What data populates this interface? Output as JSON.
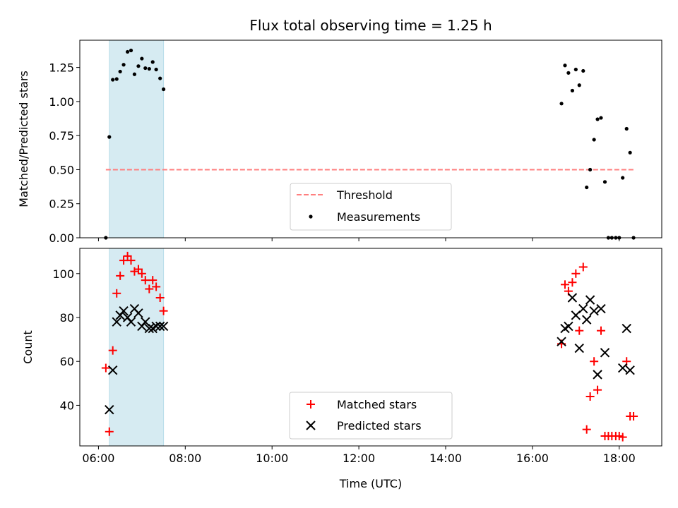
{
  "chart_data": [
    {
      "type": "scatter",
      "title": "Flux total observing time = 1.25 h",
      "xlabel": "",
      "ylabel": "Matched/Predicted stars",
      "xlim": [
        5.57,
        18.98
      ],
      "ylim": [
        0.0,
        1.45
      ],
      "yticks": [
        0.0,
        0.25,
        0.5,
        0.75,
        1.0,
        1.25
      ],
      "ytick_labels": [
        "0.00",
        "0.25",
        "0.50",
        "0.75",
        "1.00",
        "1.25"
      ],
      "highlight_span": [
        6.25,
        7.5
      ],
      "highlight_color": "#add8e6",
      "threshold": {
        "name": "Threshold",
        "y": 0.5,
        "x_range": [
          6.17,
          18.35
        ],
        "color": "#ff7f7f"
      },
      "series": [
        {
          "name": "Measurements",
          "color": "#000000",
          "marker": "dot",
          "points": [
            [
              6.17,
              0.0
            ],
            [
              6.25,
              0.74
            ],
            [
              6.33,
              1.16
            ],
            [
              6.42,
              1.165
            ],
            [
              6.5,
              1.22
            ],
            [
              6.58,
              1.27
            ],
            [
              6.67,
              1.365
            ],
            [
              6.75,
              1.375
            ],
            [
              6.83,
              1.2
            ],
            [
              6.92,
              1.26
            ],
            [
              7.0,
              1.315
            ],
            [
              7.08,
              1.245
            ],
            [
              7.17,
              1.24
            ],
            [
              7.25,
              1.29
            ],
            [
              7.33,
              1.235
            ],
            [
              7.42,
              1.17
            ],
            [
              7.5,
              1.09
            ],
            [
              16.67,
              0.985
            ],
            [
              16.75,
              1.265
            ],
            [
              16.83,
              1.21
            ],
            [
              16.92,
              1.08
            ],
            [
              17.0,
              1.235
            ],
            [
              17.08,
              1.12
            ],
            [
              17.17,
              1.225
            ],
            [
              17.25,
              0.37
            ],
            [
              17.33,
              0.5
            ],
            [
              17.42,
              0.72
            ],
            [
              17.5,
              0.87
            ],
            [
              17.58,
              0.88
            ],
            [
              17.67,
              0.41
            ],
            [
              17.75,
              0.0
            ],
            [
              17.83,
              0.0
            ],
            [
              17.92,
              0.0
            ],
            [
              18.0,
              0.0
            ],
            [
              18.08,
              0.44
            ],
            [
              18.17,
              0.8
            ],
            [
              18.25,
              0.625
            ],
            [
              18.33,
              0.0
            ]
          ]
        }
      ],
      "legend": {
        "placement": "lower-center",
        "entries": [
          "Threshold",
          "Measurements"
        ]
      }
    },
    {
      "type": "scatter",
      "title": "",
      "xlabel": "Time (UTC)",
      "ylabel": "Count",
      "xlim": [
        5.57,
        18.98
      ],
      "ylim": [
        21.5,
        111.5
      ],
      "yticks": [
        40,
        60,
        80,
        100
      ],
      "ytick_labels": [
        "40",
        "60",
        "80",
        "100"
      ],
      "xticks": [
        6,
        8,
        10,
        12,
        14,
        16,
        18
      ],
      "xtick_labels": [
        "06:00",
        "08:00",
        "10:00",
        "12:00",
        "14:00",
        "16:00",
        "18:00"
      ],
      "highlight_span": [
        6.25,
        7.5
      ],
      "highlight_color": "#add8e6",
      "series": [
        {
          "name": "Matched stars",
          "color": "#ff0000",
          "marker": "plus",
          "points": [
            [
              6.17,
              57
            ],
            [
              6.25,
              28
            ],
            [
              6.33,
              65
            ],
            [
              6.42,
              91
            ],
            [
              6.5,
              99
            ],
            [
              6.58,
              106
            ],
            [
              6.67,
              108
            ],
            [
              6.75,
              106
            ],
            [
              6.83,
              101
            ],
            [
              6.92,
              102
            ],
            [
              7.0,
              100
            ],
            [
              7.08,
              97
            ],
            [
              7.17,
              93
            ],
            [
              7.25,
              97
            ],
            [
              7.33,
              94
            ],
            [
              7.42,
              89
            ],
            [
              7.5,
              83
            ],
            [
              16.67,
              68
            ],
            [
              16.75,
              95
            ],
            [
              16.83,
              92
            ],
            [
              16.92,
              96
            ],
            [
              17.0,
              100
            ],
            [
              17.08,
              74
            ],
            [
              17.17,
              103
            ],
            [
              17.25,
              29
            ],
            [
              17.33,
              44
            ],
            [
              17.42,
              60
            ],
            [
              17.5,
              47
            ],
            [
              17.58,
              74
            ],
            [
              17.67,
              26
            ],
            [
              17.75,
              26
            ],
            [
              17.83,
              26
            ],
            [
              17.92,
              26
            ],
            [
              18.0,
              26
            ],
            [
              18.08,
              25.5
            ],
            [
              18.17,
              60
            ],
            [
              18.25,
              35
            ],
            [
              18.33,
              35
            ]
          ]
        },
        {
          "name": "Predicted stars",
          "color": "#000000",
          "marker": "x",
          "points": [
            [
              6.25,
              38
            ],
            [
              6.33,
              56
            ],
            [
              6.42,
              78
            ],
            [
              6.5,
              81
            ],
            [
              6.58,
              83
            ],
            [
              6.67,
              80
            ],
            [
              6.75,
              78
            ],
            [
              6.83,
              84
            ],
            [
              6.92,
              82
            ],
            [
              7.0,
              76
            ],
            [
              7.08,
              78
            ],
            [
              7.17,
              75
            ],
            [
              7.25,
              75
            ],
            [
              7.33,
              76
            ],
            [
              7.42,
              76
            ],
            [
              7.5,
              76
            ],
            [
              16.67,
              69
            ],
            [
              16.75,
              75
            ],
            [
              16.83,
              76
            ],
            [
              16.92,
              89
            ],
            [
              17.0,
              81
            ],
            [
              17.08,
              66
            ],
            [
              17.17,
              84
            ],
            [
              17.25,
              79
            ],
            [
              17.33,
              88
            ],
            [
              17.42,
              83
            ],
            [
              17.5,
              54
            ],
            [
              17.58,
              84
            ],
            [
              17.67,
              64
            ],
            [
              18.08,
              57
            ],
            [
              18.17,
              75
            ],
            [
              18.25,
              56
            ]
          ]
        }
      ],
      "legend": {
        "placement": "lower-center",
        "entries": [
          "Matched stars",
          "Predicted stars"
        ]
      }
    }
  ]
}
